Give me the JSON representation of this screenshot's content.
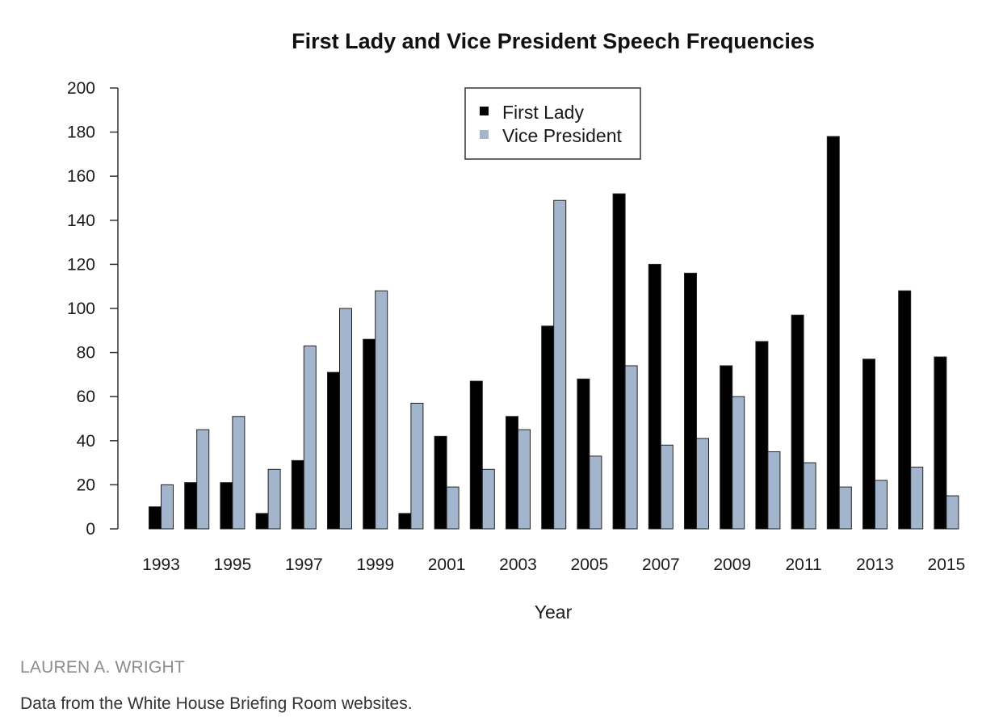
{
  "chart_data": {
    "type": "bar",
    "title": "First Lady and Vice President Speech Frequencies",
    "xlabel": "Year",
    "ylabel": "",
    "ylim": [
      0,
      200
    ],
    "yticks": [
      0,
      20,
      40,
      60,
      80,
      100,
      120,
      140,
      160,
      180,
      200
    ],
    "categories": [
      "1993",
      "1994",
      "1995",
      "1996",
      "1997",
      "1998",
      "1999",
      "2000",
      "2001",
      "2002",
      "2003",
      "2004",
      "2005",
      "2006",
      "2007",
      "2008",
      "2009",
      "2010",
      "2011",
      "2012",
      "2013",
      "2014",
      "2015"
    ],
    "xtick_labels": [
      "1993",
      "1995",
      "1997",
      "1999",
      "2001",
      "2003",
      "2005",
      "2007",
      "2009",
      "2011",
      "2013",
      "2015"
    ],
    "series": [
      {
        "name": "First Lady",
        "color": "#000000",
        "values": [
          10,
          21,
          21,
          7,
          31,
          71,
          86,
          7,
          42,
          67,
          51,
          92,
          68,
          152,
          120,
          116,
          74,
          85,
          97,
          178,
          77,
          108,
          78
        ]
      },
      {
        "name": "Vice President",
        "color": "#a3b5cc",
        "values": [
          20,
          45,
          51,
          27,
          83,
          100,
          108,
          57,
          19,
          27,
          45,
          149,
          33,
          74,
          38,
          41,
          60,
          35,
          30,
          19,
          22,
          28,
          15
        ]
      }
    ],
    "legend_position": "top-center"
  },
  "footer": {
    "credit": "LAUREN A. WRIGHT",
    "caption": "Data from the White House Briefing Room websites."
  }
}
